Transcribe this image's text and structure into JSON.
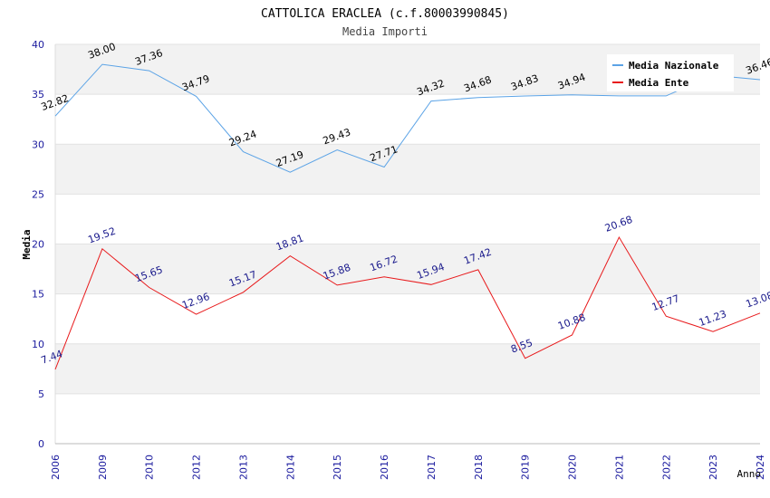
{
  "chart_data": {
    "type": "line",
    "title": "CATTOLICA ERACLEA (c.f.80003990845)",
    "subtitle": "Media Importi",
    "xlabel": "Anno",
    "ylabel": "Media",
    "ylim": [
      0,
      40
    ],
    "yticks": [
      0,
      5,
      10,
      15,
      20,
      25,
      30,
      35,
      40
    ],
    "categories": [
      "2006",
      "2009",
      "2010",
      "2012",
      "2013",
      "2014",
      "2015",
      "2016",
      "2017",
      "2018",
      "2019",
      "2020",
      "2021",
      "2022",
      "2023",
      "2024"
    ],
    "grid": true,
    "legend_position": "top-right",
    "series": [
      {
        "name": "Media Nazionale",
        "color": "#5ba3e6",
        "label_color": "#000000",
        "values": [
          32.82,
          38.0,
          37.36,
          34.79,
          29.24,
          27.19,
          29.43,
          27.71,
          34.32,
          34.68,
          34.83,
          34.94,
          34.84,
          34.84,
          36.91,
          36.46
        ],
        "labels": [
          "32.82",
          "38.00",
          "37.36",
          "34.79",
          "29.24",
          "27.19",
          "29.43",
          "27.71",
          "34.32",
          "34.68",
          "34.83",
          "34.94",
          "",
          "",
          "",
          "36.46"
        ]
      },
      {
        "name": "Media Ente",
        "color": "#e8191b",
        "label_color": "#1a1a8c",
        "values": [
          7.44,
          19.52,
          15.65,
          12.96,
          15.17,
          18.81,
          15.88,
          16.72,
          15.94,
          17.42,
          8.55,
          10.88,
          20.68,
          12.77,
          11.23,
          13.08
        ],
        "labels": [
          "7.44",
          "19.52",
          "15.65",
          "12.96",
          "15.17",
          "18.81",
          "15.88",
          "16.72",
          "15.94",
          "17.42",
          "8.55",
          "10.88",
          "20.68",
          "12.77",
          "11.23",
          "13.08"
        ]
      }
    ]
  }
}
